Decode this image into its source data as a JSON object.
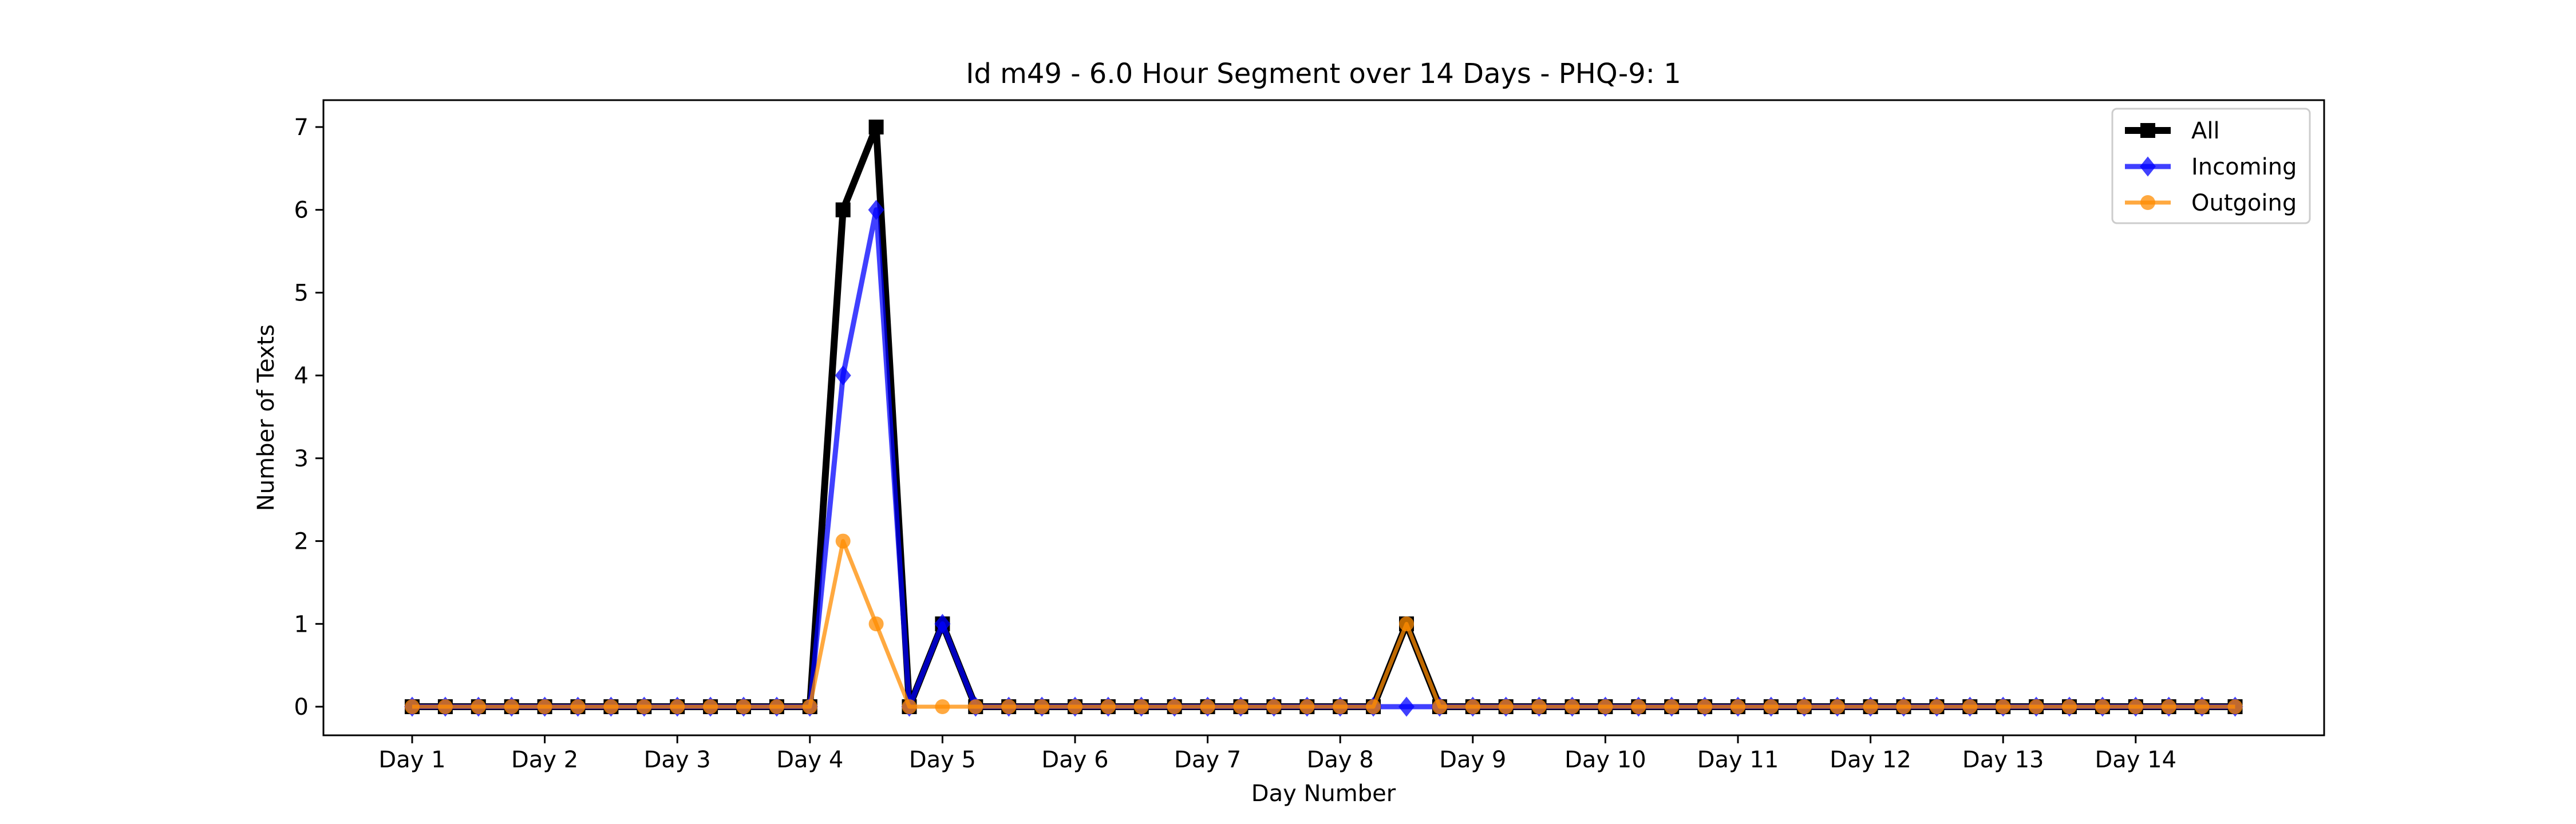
{
  "chart_data": {
    "type": "line",
    "title": "Id m49 - 6.0 Hour Segment over 14 Days - PHQ-9: 1",
    "xlabel": "Day Number",
    "ylabel": "Number of Texts",
    "x_tick_labels": [
      "Day 1",
      "Day 2",
      "Day 3",
      "Day 4",
      "Day 5",
      "Day 6",
      "Day 7",
      "Day 8",
      "Day 9",
      "Day 10",
      "Day 11",
      "Day 12",
      "Day 13",
      "Day 14"
    ],
    "segments_per_day": 4,
    "segment_count": 56,
    "ylim": [
      0,
      7
    ],
    "y_ticks": [
      0,
      1,
      2,
      3,
      4,
      5,
      6,
      7
    ],
    "legend_position": "top-right",
    "grid": false,
    "series": [
      {
        "name": "All",
        "color": "#000000",
        "marker": "square",
        "values": [
          0,
          0,
          0,
          0,
          0,
          0,
          0,
          0,
          0,
          0,
          0,
          0,
          0,
          6,
          7,
          0,
          1,
          0,
          0,
          0,
          0,
          0,
          0,
          0,
          0,
          0,
          0,
          0,
          0,
          0,
          1,
          0,
          0,
          0,
          0,
          0,
          0,
          0,
          0,
          0,
          0,
          0,
          0,
          0,
          0,
          0,
          0,
          0,
          0,
          0,
          0,
          0,
          0,
          0,
          0,
          0
        ]
      },
      {
        "name": "Incoming",
        "color": "#0000ff",
        "marker": "diamond",
        "values": [
          0,
          0,
          0,
          0,
          0,
          0,
          0,
          0,
          0,
          0,
          0,
          0,
          0,
          4,
          6,
          0,
          1,
          0,
          0,
          0,
          0,
          0,
          0,
          0,
          0,
          0,
          0,
          0,
          0,
          0,
          0,
          0,
          0,
          0,
          0,
          0,
          0,
          0,
          0,
          0,
          0,
          0,
          0,
          0,
          0,
          0,
          0,
          0,
          0,
          0,
          0,
          0,
          0,
          0,
          0,
          0
        ]
      },
      {
        "name": "Outgoing",
        "color": "#ff8c00",
        "marker": "circle",
        "values": [
          0,
          0,
          0,
          0,
          0,
          0,
          0,
          0,
          0,
          0,
          0,
          0,
          0,
          2,
          1,
          0,
          0,
          0,
          0,
          0,
          0,
          0,
          0,
          0,
          0,
          0,
          0,
          0,
          0,
          0,
          1,
          0,
          0,
          0,
          0,
          0,
          0,
          0,
          0,
          0,
          0,
          0,
          0,
          0,
          0,
          0,
          0,
          0,
          0,
          0,
          0,
          0,
          0,
          0,
          0,
          0
        ]
      }
    ]
  }
}
